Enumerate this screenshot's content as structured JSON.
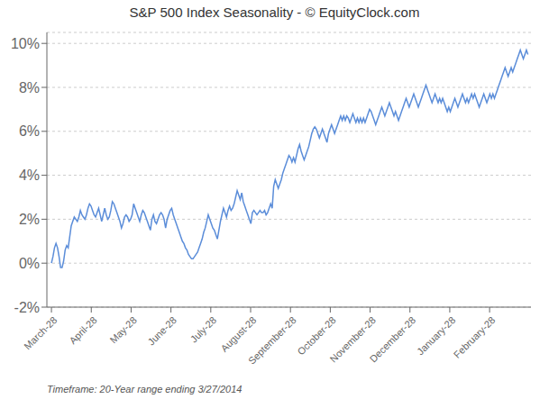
{
  "chart_data": {
    "type": "line",
    "title": "S&P 500 Index Seasonality - © EquityClock.com",
    "annotations": [
      "Timeframe: 20-Year range ending 3/27/2014"
    ],
    "color": "#5B8DD9",
    "grid": true,
    "xlim": [
      -3,
      315
    ],
    "xticks": [
      {
        "value": 0,
        "label": "March-28"
      },
      {
        "value": 26.166666666666668,
        "label": "April-28"
      },
      {
        "value": 52.333333333333336,
        "label": "May-28"
      },
      {
        "value": 78.5,
        "label": "June-28"
      },
      {
        "value": 104.66666666666667,
        "label": "July-28"
      },
      {
        "value": 130.83333333333334,
        "label": "August-28"
      },
      {
        "value": 157.0,
        "label": "September-28"
      },
      {
        "value": 183.16666666666669,
        "label": "October-28"
      },
      {
        "value": 209.33333333333334,
        "label": "November-28"
      },
      {
        "value": 235.5,
        "label": "December-28"
      },
      {
        "value": 261.6666666666667,
        "label": "January-28"
      },
      {
        "value": 287.83333333333337,
        "label": "February-28"
      }
    ],
    "ylim": [
      -0.02,
      0.105
    ],
    "yticks": [
      {
        "value": -0.02,
        "label": "-2%"
      },
      {
        "value": 0.0,
        "label": "0%"
      },
      {
        "value": 0.02,
        "label": "2%"
      },
      {
        "value": 0.04,
        "label": "4%"
      },
      {
        "value": 0.06,
        "label": "6%"
      },
      {
        "value": 0.08,
        "label": "8%"
      },
      {
        "value": 0.1,
        "label": "10%"
      }
    ],
    "x": [
      0,
      1,
      2,
      3,
      4,
      5,
      6,
      7,
      8,
      9,
      10,
      11,
      12,
      13,
      14,
      15,
      16,
      17,
      18,
      19,
      20,
      21,
      22,
      23,
      24,
      25,
      26,
      27,
      28,
      29,
      30,
      31,
      32,
      33,
      34,
      35,
      36,
      37,
      38,
      39,
      40,
      41,
      42,
      43,
      44,
      45,
      46,
      47,
      48,
      49,
      50,
      51,
      52,
      53,
      54,
      55,
      56,
      57,
      58,
      59,
      60,
      61,
      62,
      63,
      64,
      65,
      66,
      67,
      68,
      69,
      70,
      71,
      72,
      73,
      74,
      75,
      76,
      77,
      78,
      79,
      80,
      81,
      82,
      83,
      84,
      85,
      86,
      87,
      88,
      89,
      90,
      91,
      92,
      93,
      94,
      95,
      96,
      97,
      98,
      99,
      100,
      101,
      102,
      103,
      104,
      105,
      106,
      107,
      108,
      109,
      110,
      111,
      112,
      113,
      114,
      115,
      116,
      117,
      118,
      119,
      120,
      121,
      122,
      123,
      124,
      125,
      126,
      127,
      128,
      129,
      130,
      131,
      132,
      133,
      134,
      135,
      136,
      137,
      138,
      139,
      140,
      141,
      142,
      143,
      144,
      145,
      146,
      147,
      148,
      149,
      150,
      151,
      152,
      153,
      154,
      155,
      156,
      157,
      158,
      159,
      160,
      161,
      162,
      163,
      164,
      165,
      166,
      167,
      168,
      169,
      170,
      171,
      172,
      173,
      174,
      175,
      176,
      177,
      178,
      179,
      180,
      181,
      182,
      183,
      184,
      185,
      186,
      187,
      188,
      189,
      190,
      191,
      192,
      193,
      194,
      195,
      196,
      197,
      198,
      199,
      200,
      201,
      202,
      203,
      204,
      205,
      206,
      207,
      208,
      209,
      210,
      211,
      212,
      213,
      214,
      215,
      216,
      217,
      218,
      219,
      220,
      221,
      222,
      223,
      224,
      225,
      226,
      227,
      228,
      229,
      230,
      231,
      232,
      233,
      234,
      235,
      236,
      237,
      238,
      239,
      240,
      241,
      242,
      243,
      244,
      245,
      246,
      247,
      248,
      249,
      250,
      251,
      252,
      253,
      254,
      255,
      256,
      257,
      258,
      259,
      260,
      261,
      262,
      263,
      264,
      265,
      266,
      267,
      268,
      269,
      270,
      271,
      272,
      273,
      274,
      275,
      276,
      277,
      278,
      279,
      280,
      281,
      282,
      283,
      284,
      285,
      286,
      287,
      288,
      289,
      290,
      291,
      292,
      293,
      294,
      295,
      296,
      297,
      298,
      299,
      300,
      301,
      302,
      303,
      304,
      305,
      306,
      307,
      308,
      309,
      310,
      311,
      312,
      313
    ],
    "values": [
      0.0,
      0.003,
      0.007,
      0.009,
      0.007,
      0.003,
      -0.002,
      -0.002,
      0.001,
      0.006,
      0.008,
      0.007,
      0.012,
      0.017,
      0.019,
      0.021,
      0.02,
      0.019,
      0.021,
      0.024,
      0.022,
      0.021,
      0.02,
      0.022,
      0.025,
      0.027,
      0.026,
      0.024,
      0.022,
      0.021,
      0.023,
      0.025,
      0.022,
      0.019,
      0.022,
      0.025,
      0.022,
      0.02,
      0.021,
      0.024,
      0.028,
      0.027,
      0.025,
      0.023,
      0.021,
      0.019,
      0.016,
      0.018,
      0.021,
      0.022,
      0.021,
      0.019,
      0.02,
      0.022,
      0.027,
      0.025,
      0.023,
      0.021,
      0.019,
      0.022,
      0.024,
      0.023,
      0.021,
      0.019,
      0.017,
      0.015,
      0.02,
      0.022,
      0.019,
      0.018,
      0.02,
      0.022,
      0.023,
      0.022,
      0.02,
      0.016,
      0.02,
      0.022,
      0.024,
      0.025,
      0.022,
      0.02,
      0.018,
      0.016,
      0.014,
      0.012,
      0.01,
      0.009,
      0.007,
      0.006,
      0.004,
      0.003,
      0.002,
      0.002,
      0.003,
      0.004,
      0.005,
      0.007,
      0.009,
      0.011,
      0.014,
      0.016,
      0.019,
      0.022,
      0.02,
      0.018,
      0.016,
      0.015,
      0.013,
      0.011,
      0.015,
      0.019,
      0.022,
      0.025,
      0.023,
      0.021,
      0.024,
      0.026,
      0.024,
      0.025,
      0.027,
      0.03,
      0.033,
      0.031,
      0.029,
      0.032,
      0.028,
      0.026,
      0.024,
      0.022,
      0.02,
      0.018,
      0.023,
      0.024,
      0.023,
      0.022,
      0.023,
      0.024,
      0.023,
      0.023,
      0.024,
      0.022,
      0.023,
      0.025,
      0.027,
      0.025,
      0.035,
      0.038,
      0.036,
      0.034,
      0.036,
      0.038,
      0.041,
      0.043,
      0.045,
      0.047,
      0.049,
      0.048,
      0.046,
      0.048,
      0.046,
      0.049,
      0.052,
      0.054,
      0.051,
      0.049,
      0.047,
      0.049,
      0.051,
      0.053,
      0.056,
      0.059,
      0.061,
      0.062,
      0.061,
      0.059,
      0.057,
      0.059,
      0.061,
      0.059,
      0.057,
      0.055,
      0.059,
      0.061,
      0.063,
      0.061,
      0.059,
      0.061,
      0.063,
      0.065,
      0.067,
      0.065,
      0.067,
      0.065,
      0.067,
      0.066,
      0.064,
      0.066,
      0.068,
      0.066,
      0.064,
      0.066,
      0.064,
      0.066,
      0.064,
      0.066,
      0.064,
      0.066,
      0.068,
      0.07,
      0.069,
      0.067,
      0.065,
      0.063,
      0.065,
      0.067,
      0.069,
      0.071,
      0.069,
      0.067,
      0.069,
      0.071,
      0.073,
      0.071,
      0.069,
      0.067,
      0.069,
      0.067,
      0.065,
      0.067,
      0.069,
      0.071,
      0.073,
      0.075,
      0.073,
      0.071,
      0.073,
      0.075,
      0.077,
      0.075,
      0.073,
      0.071,
      0.073,
      0.075,
      0.077,
      0.079,
      0.081,
      0.079,
      0.077,
      0.075,
      0.073,
      0.075,
      0.077,
      0.075,
      0.073,
      0.075,
      0.073,
      0.075,
      0.073,
      0.071,
      0.069,
      0.071,
      0.069,
      0.071,
      0.073,
      0.075,
      0.073,
      0.071,
      0.073,
      0.075,
      0.077,
      0.075,
      0.073,
      0.075,
      0.073,
      0.075,
      0.077,
      0.075,
      0.077,
      0.075,
      0.073,
      0.071,
      0.073,
      0.075,
      0.077,
      0.075,
      0.073,
      0.075,
      0.077,
      0.075,
      0.077,
      0.075,
      0.077,
      0.079,
      0.081,
      0.083,
      0.085,
      0.087,
      0.089,
      0.087,
      0.085,
      0.087,
      0.089,
      0.087,
      0.089,
      0.091,
      0.093,
      0.095,
      0.097,
      0.095,
      0.093,
      0.095,
      0.097,
      0.095
    ]
  }
}
